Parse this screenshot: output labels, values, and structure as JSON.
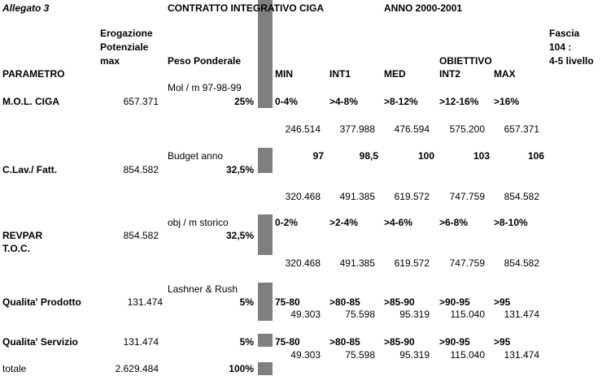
{
  "title": "Allegato 3",
  "contract_title": "CONTRATTO INTEGRATIVO CIGA",
  "year": "ANNO 2000-2001",
  "headers": {
    "parametro": "PARAMETRO",
    "erogazione": [
      "Erogazione",
      "Potenziale",
      "max"
    ],
    "peso": "Peso Ponderale",
    "obiettivo": "OBIETTIVO",
    "fascia": [
      "Fascia",
      "104 :",
      "4-5 livello"
    ],
    "levels": [
      "MIN",
      "INT1",
      "MED",
      "INT2",
      "MAX"
    ]
  },
  "rows": [
    {
      "name": "M.O.L. CIGA",
      "amount": "657.371",
      "basis": "Mol / m 97-98-99",
      "weight": "25%",
      "thresholds": [
        "0-4%",
        ">4-8%",
        ">8-12%",
        ">12-16%",
        ">16%"
      ],
      "values": [
        "246.514",
        "377.988",
        "476.594",
        "575.200",
        "657.371"
      ]
    },
    {
      "name": "C.Lav./ Fatt.",
      "amount": "854.582",
      "basis": "Budget anno",
      "weight": "32,5%",
      "thresholds": [
        "97",
        "98,5",
        "100",
        "103",
        "106"
      ],
      "values": [
        "320.468",
        "491.385",
        "619.572",
        "747.759",
        "854.582"
      ]
    },
    {
      "name": [
        "REVPAR",
        "T.O.C."
      ],
      "amount": "854.582",
      "basis": "obj / m storico",
      "weight": "32,5%",
      "thresholds": [
        "0-2%",
        ">2-4%",
        ">4-6%",
        ">6-8%",
        ">8-10%"
      ],
      "values": [
        "320.468",
        "491.385",
        "619.572",
        "747.759",
        "854.582"
      ]
    },
    {
      "name": "Qualita' Prodotto",
      "amount": "131.474",
      "basis": "Lashner & Rush",
      "weight": "5%",
      "thresholds": [
        "75-80",
        ">80-85",
        ">85-90",
        ">90-95",
        ">95"
      ],
      "values": [
        "49.303",
        "75.598",
        "95.319",
        "115.040",
        "131.474"
      ]
    },
    {
      "name": "Qualita' Servizio",
      "amount": "131.474",
      "basis": "",
      "weight": "5%",
      "thresholds": [
        "75-80",
        ">80-85",
        ">85-90",
        ">90-95",
        ">95"
      ],
      "values": [
        "49.303",
        "75.598",
        "95.319",
        "115.040",
        "131.474"
      ]
    }
  ],
  "total": {
    "label": "totale",
    "amount": "2.629.484",
    "weight": "100%"
  }
}
